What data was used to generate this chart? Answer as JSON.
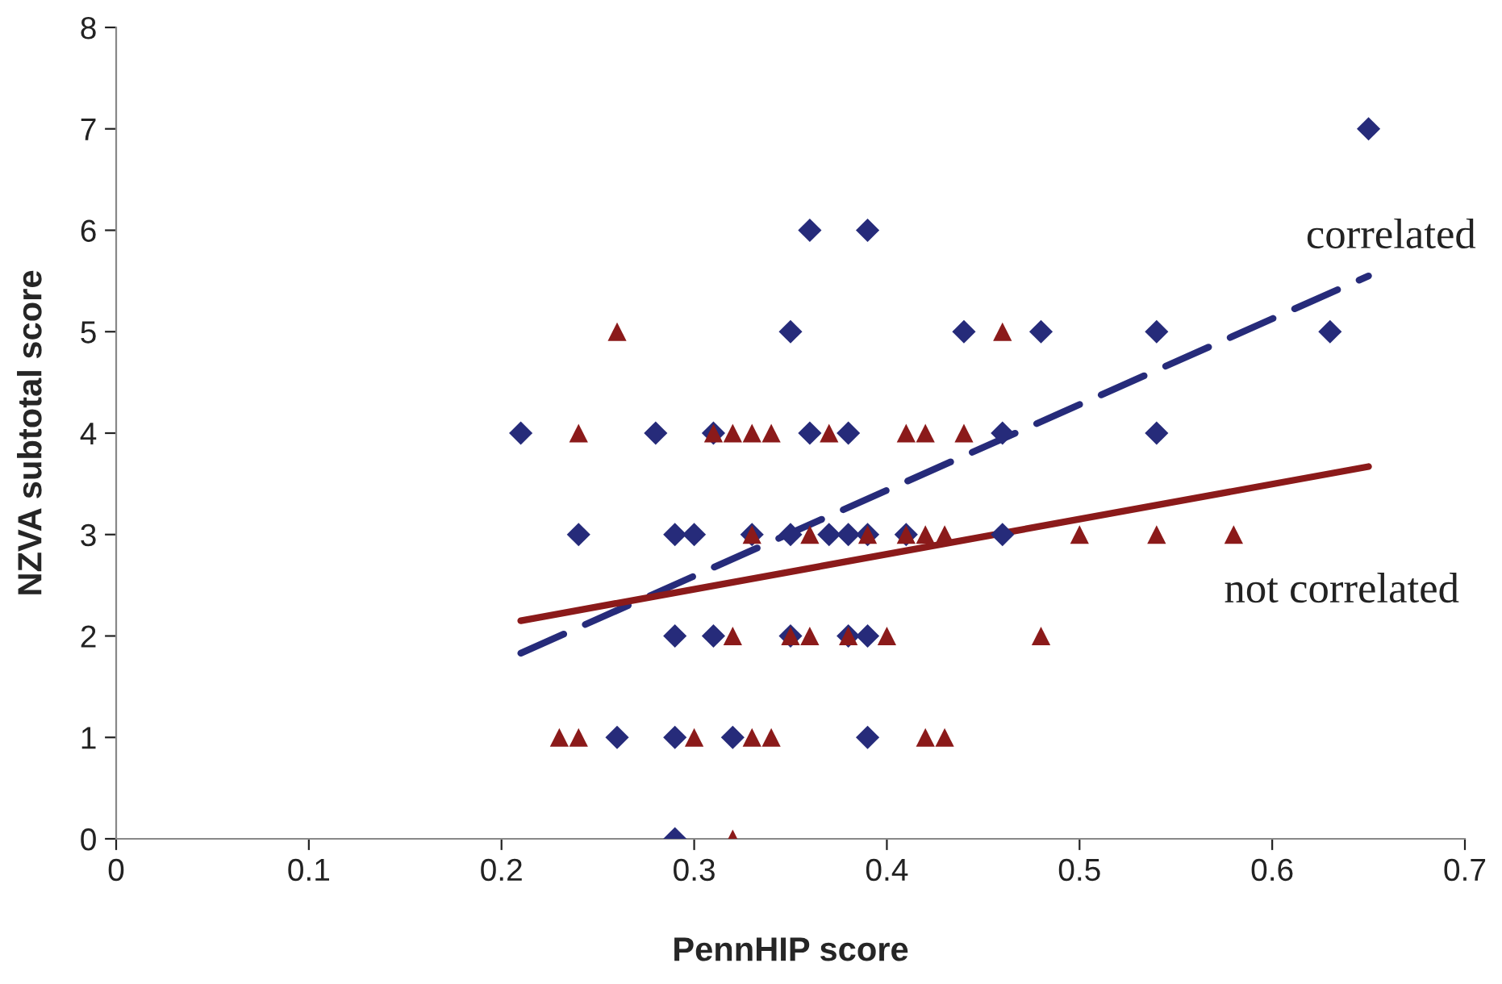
{
  "chart_data": {
    "type": "scatter",
    "xlabel": "PennHIP score",
    "ylabel": "NZVA subtotal score",
    "xlim": [
      0,
      0.7
    ],
    "ylim": [
      0,
      8
    ],
    "xticks": [
      0,
      0.1,
      0.2,
      0.3,
      0.4,
      0.5,
      0.6,
      0.7
    ],
    "yticks": [
      0,
      1,
      2,
      3,
      4,
      5,
      6,
      7,
      8
    ],
    "grid": false,
    "legend": false,
    "series": [
      {
        "marker": "diamond",
        "color": "#262b7a",
        "x": [
          0.65,
          0.36,
          0.39,
          0.35,
          0.44,
          0.48,
          0.54,
          0.63,
          0.21,
          0.28,
          0.31,
          0.36,
          0.38,
          0.46,
          0.54,
          0.24,
          0.29,
          0.3,
          0.33,
          0.35,
          0.37,
          0.38,
          0.39,
          0.41,
          0.46,
          0.29,
          0.31,
          0.35,
          0.38,
          0.39,
          0.26,
          0.29,
          0.32,
          0.39,
          0.29
        ],
        "values": [
          7,
          6,
          6,
          5,
          5,
          5,
          5,
          5,
          4,
          4,
          4,
          4,
          4,
          4,
          4,
          3,
          3,
          3,
          3,
          3,
          3,
          3,
          3,
          3,
          3,
          2,
          2,
          2,
          2,
          2,
          1,
          1,
          1,
          1,
          0
        ]
      },
      {
        "marker": "triangle",
        "color": "#8b1a1a",
        "x": [
          0.26,
          0.46,
          0.24,
          0.31,
          0.32,
          0.33,
          0.34,
          0.37,
          0.41,
          0.42,
          0.44,
          0.33,
          0.36,
          0.39,
          0.41,
          0.42,
          0.43,
          0.5,
          0.54,
          0.58,
          0.32,
          0.35,
          0.36,
          0.38,
          0.4,
          0.48,
          0.23,
          0.24,
          0.3,
          0.33,
          0.34,
          0.42,
          0.43,
          0.32
        ],
        "values": [
          5,
          5,
          4,
          4,
          4,
          4,
          4,
          4,
          4,
          4,
          4,
          3,
          3,
          3,
          3,
          3,
          3,
          3,
          3,
          3,
          2,
          2,
          2,
          2,
          2,
          2,
          1,
          1,
          1,
          1,
          1,
          1,
          1,
          0
        ]
      },
      {
        "type": "line",
        "name": "correlated",
        "marker": "none",
        "line_style": "dashed",
        "color": "#262b7a",
        "x": [
          0.21,
          0.65
        ],
        "values": [
          1.83,
          5.55
        ]
      },
      {
        "type": "line",
        "name": "not correlated",
        "marker": "none",
        "line_style": "solid",
        "color": "#8b1a1a",
        "x": [
          0.21,
          0.65
        ],
        "values": [
          2.15,
          3.67
        ]
      }
    ]
  }
}
